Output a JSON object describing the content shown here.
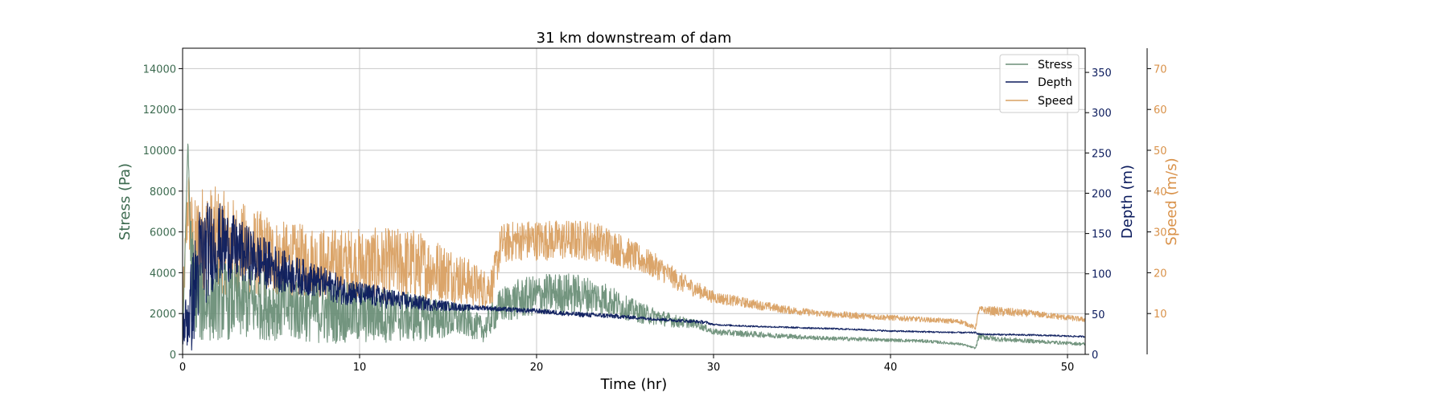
{
  "chart_data": {
    "type": "line",
    "title": "31 km downstream of dam",
    "xlabel": "Time (hr)",
    "xlim": [
      0,
      51
    ],
    "xticks": [
      0,
      10,
      20,
      30,
      40,
      50
    ],
    "grid": true,
    "legend_position": "top-right",
    "axes": {
      "stress": {
        "label": "Stress (Pa)",
        "ylim": [
          0,
          15000
        ],
        "ticks": [
          0,
          2000,
          4000,
          6000,
          8000,
          10000,
          12000,
          14000
        ],
        "color": "#3d6b50"
      },
      "depth": {
        "label": "Depth (m)",
        "ylim": [
          0,
          380
        ],
        "ticks": [
          0,
          50,
          100,
          150,
          200,
          250,
          300,
          350
        ],
        "color": "#0a1a5c"
      },
      "speed": {
        "label": "Speed (m/s)",
        "ylim": [
          0,
          75
        ],
        "ticks": [
          10,
          20,
          30,
          40,
          50,
          60,
          70
        ],
        "color": "#d9924a"
      }
    },
    "series": [
      {
        "name": "Stress",
        "axis": "stress",
        "color": "#6b8f78",
        "x": [
          0,
          0.3,
          0.5,
          1,
          2,
          3,
          4,
          5,
          6,
          7,
          8,
          9,
          10,
          11,
          12,
          13,
          14,
          15,
          16,
          17,
          18,
          19,
          20,
          21,
          22,
          23,
          24,
          25,
          26,
          27,
          28,
          29,
          30,
          32,
          34,
          36,
          38,
          40,
          42,
          44,
          44.8,
          45,
          46,
          48,
          50,
          51
        ],
        "y": [
          500,
          10500,
          4000,
          2500,
          2700,
          2600,
          2500,
          2400,
          2300,
          2200,
          2100,
          2050,
          2000,
          1950,
          1900,
          1800,
          1750,
          1700,
          1650,
          1200,
          2400,
          2700,
          2900,
          3000,
          3000,
          2900,
          2700,
          2300,
          2000,
          1800,
          1600,
          1500,
          1100,
          1000,
          900,
          800,
          750,
          700,
          650,
          500,
          300,
          900,
          750,
          650,
          550,
          500
        ],
        "noise": [
          0,
          0,
          2500,
          2000,
          2000,
          1900,
          1800,
          1700,
          1700,
          1600,
          1600,
          1500,
          1500,
          1400,
          1300,
          1200,
          1100,
          900,
          800,
          600,
          900,
          1000,
          1000,
          1000,
          1000,
          900,
          800,
          600,
          500,
          400,
          300,
          200,
          150,
          150,
          120,
          100,
          100,
          80,
          80,
          60,
          40,
          150,
          120,
          100,
          80,
          80
        ]
      },
      {
        "name": "Depth",
        "axis": "depth",
        "color": "#0a1a5c",
        "x": [
          0,
          0.5,
          1,
          2,
          3,
          4,
          5,
          6,
          7,
          8,
          9,
          10,
          11,
          12,
          13,
          14,
          15,
          16,
          17,
          18,
          19,
          20,
          22,
          24,
          26,
          28,
          29.5,
          30,
          32,
          35,
          38,
          40,
          42,
          44,
          44.8,
          45,
          48,
          51
        ],
        "y": [
          30,
          60,
          120,
          140,
          130,
          120,
          110,
          100,
          95,
          88,
          80,
          75,
          72,
          68,
          65,
          62,
          60,
          58,
          58,
          56,
          55,
          54,
          50,
          48,
          45,
          42,
          40,
          37,
          35,
          33,
          31,
          29,
          28,
          27,
          27,
          25,
          24,
          22
        ],
        "noise": [
          20,
          60,
          70,
          50,
          40,
          35,
          30,
          25,
          22,
          20,
          18,
          15,
          14,
          12,
          10,
          8,
          6,
          4,
          3,
          3,
          3,
          3,
          3,
          3,
          2,
          2,
          2,
          1,
          1,
          1,
          1,
          1,
          1,
          1,
          1,
          1,
          1,
          1
        ]
      },
      {
        "name": "Speed",
        "axis": "speed",
        "color": "#d9a062",
        "x": [
          0,
          0.3,
          0.6,
          1,
          2,
          3,
          4,
          5,
          6,
          7,
          8,
          9,
          10,
          11,
          12,
          13,
          14,
          15,
          16,
          17,
          17.5,
          18,
          19,
          20,
          21,
          22,
          23,
          24,
          25,
          26,
          27,
          28,
          29,
          30,
          32,
          34,
          36,
          38,
          40,
          42,
          44,
          44.8,
          45,
          46,
          48,
          50,
          51
        ],
        "y": [
          10,
          38,
          25,
          28,
          28,
          26,
          25,
          24,
          23,
          23,
          22,
          22,
          22,
          22,
          22,
          22,
          21,
          20,
          18,
          16,
          17,
          27,
          28,
          28,
          28,
          28,
          28,
          27,
          25,
          23,
          21,
          18,
          16,
          14,
          12.5,
          11,
          10,
          9.5,
          9,
          8.5,
          8,
          6.5,
          11,
          10.5,
          10,
          9,
          8.5
        ],
        "noise": [
          5,
          10,
          12,
          14,
          13,
          12,
          11,
          10,
          9,
          9,
          9,
          9,
          9,
          9,
          9,
          9,
          8,
          7,
          6,
          5,
          5,
          5,
          5,
          5,
          5,
          5,
          5,
          4.5,
          4,
          3.5,
          3,
          2.5,
          2,
          1.5,
          1.2,
          1,
          0.8,
          0.8,
          0.7,
          0.6,
          0.6,
          0.5,
          0.8,
          1.2,
          0.8,
          0.7,
          0.6
        ]
      }
    ]
  }
}
